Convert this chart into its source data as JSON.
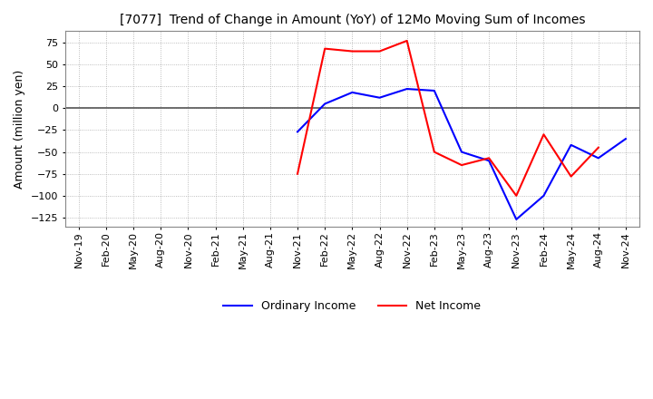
{
  "title": "[7077]  Trend of Change in Amount (YoY) of 12Mo Moving Sum of Incomes",
  "ylabel": "Amount (million yen)",
  "ylim": [
    -135,
    88
  ],
  "yticks": [
    75,
    50,
    25,
    0,
    -25,
    -50,
    -75,
    -100,
    -125
  ],
  "x_labels": [
    "Nov-19",
    "Feb-20",
    "May-20",
    "Aug-20",
    "Nov-20",
    "Feb-21",
    "May-21",
    "Aug-21",
    "Nov-21",
    "Feb-22",
    "May-22",
    "Aug-22",
    "Nov-22",
    "Feb-23",
    "May-23",
    "Aug-23",
    "Nov-23",
    "Feb-24",
    "May-24",
    "Aug-24",
    "Nov-24"
  ],
  "ordinary_income": [
    null,
    null,
    null,
    null,
    null,
    null,
    null,
    null,
    -27,
    5,
    18,
    12,
    22,
    20,
    -50,
    -60,
    -127,
    -100,
    -42,
    -57,
    -35
  ],
  "net_income": [
    null,
    null,
    null,
    null,
    null,
    null,
    null,
    null,
    -75,
    68,
    65,
    65,
    77,
    -50,
    -65,
    -57,
    -100,
    -30,
    -78,
    -45,
    null
  ],
  "ordinary_color": "#0000ff",
  "net_color": "#ff0000",
  "grid_color": "#aaaaaa",
  "zero_line_color": "#555555",
  "background_color": "#ffffff",
  "title_fontsize": 10,
  "tick_fontsize": 8,
  "ylabel_fontsize": 9
}
